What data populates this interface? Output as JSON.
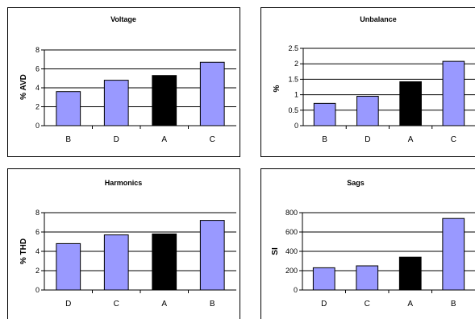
{
  "chart_data": [
    {
      "type": "bar",
      "title": "Voltage",
      "xlabel": "",
      "ylabel": "% AVD",
      "categories": [
        "B",
        "D",
        "A",
        "C"
      ],
      "values": [
        3.6,
        4.8,
        5.3,
        6.7
      ],
      "highlight": "A",
      "ylim": [
        0,
        8
      ],
      "yticks": [
        "0",
        "2",
        "4",
        "6",
        "8"
      ],
      "grid": true,
      "legend": "none"
    },
    {
      "type": "bar",
      "title": "Unbalance",
      "xlabel": "",
      "ylabel": "%",
      "categories": [
        "B",
        "D",
        "A",
        "C"
      ],
      "values": [
        0.72,
        0.95,
        1.42,
        2.08
      ],
      "highlight": "A",
      "ylim": [
        0,
        2.5
      ],
      "yticks": [
        "0",
        "0.5",
        "1",
        "1.5",
        "2",
        "2.5"
      ],
      "grid": true,
      "legend": "none"
    },
    {
      "type": "bar",
      "title": "Harmonics",
      "xlabel": "",
      "ylabel": "% THD",
      "categories": [
        "D",
        "C",
        "A",
        "B"
      ],
      "values": [
        4.8,
        5.7,
        5.8,
        7.2
      ],
      "highlight": "A",
      "ylim": [
        0,
        8
      ],
      "yticks": [
        "0",
        "2",
        "4",
        "6",
        "8"
      ],
      "grid": true,
      "legend": "none"
    },
    {
      "type": "bar",
      "title": "Sags",
      "xlabel": "",
      "ylabel": "SI",
      "categories": [
        "D",
        "C",
        "A",
        "B"
      ],
      "values": [
        230,
        250,
        340,
        740
      ],
      "highlight": "A",
      "ylim": [
        0,
        800
      ],
      "yticks": [
        "0",
        "200",
        "400",
        "600",
        "800"
      ],
      "grid": true,
      "legend": "none"
    }
  ],
  "colors": {
    "bar": "#9999ff",
    "highlight_bar": "#000000",
    "grid": "#000000",
    "border": "#000000"
  }
}
